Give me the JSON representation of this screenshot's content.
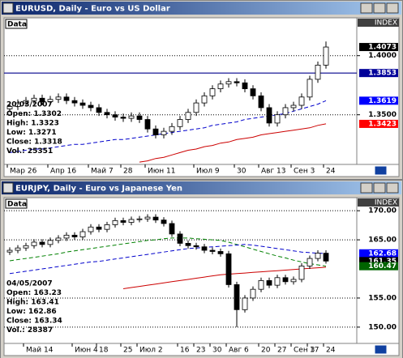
{
  "chart_data": [
    {
      "type": "candlestick",
      "title": "EURUSD, Daily - Euro vs US Dollar",
      "panel_label": "Data",
      "axis_label": "INDEX",
      "categories": [
        "Мар 26",
        null,
        null,
        null,
        null,
        "Апр 16",
        null,
        null,
        null,
        null,
        "Май 7",
        null,
        null,
        null,
        "28",
        null,
        null,
        "Июн 11",
        null,
        null,
        null,
        null,
        null,
        "Июл 9",
        null,
        null,
        null,
        null,
        "30",
        null,
        null,
        "Авг 13",
        null,
        null,
        null,
        "Сен 3",
        null,
        null,
        null,
        "24"
      ],
      "open": [
        1.355,
        1.357,
        1.36,
        1.362,
        1.364,
        1.361,
        1.363,
        1.365,
        1.362,
        1.36,
        1.358,
        1.356,
        1.352,
        1.35,
        1.348,
        1.347,
        1.349,
        1.346,
        1.338,
        1.333,
        1.336,
        1.34,
        1.346,
        1.352,
        1.36,
        1.366,
        1.372,
        1.376,
        1.378,
        1.377,
        1.372,
        1.366,
        1.356,
        1.343,
        1.35,
        1.356,
        1.358,
        1.365,
        1.38,
        1.392
      ],
      "high": [
        1.36,
        1.363,
        1.365,
        1.367,
        1.367,
        1.366,
        1.368,
        1.368,
        1.365,
        1.363,
        1.361,
        1.359,
        1.355,
        1.353,
        1.351,
        1.352,
        1.352,
        1.349,
        1.341,
        1.339,
        1.343,
        1.349,
        1.355,
        1.363,
        1.369,
        1.375,
        1.379,
        1.381,
        1.381,
        1.38,
        1.375,
        1.369,
        1.359,
        1.353,
        1.359,
        1.361,
        1.368,
        1.383,
        1.395,
        1.412
      ],
      "low": [
        1.352,
        1.354,
        1.357,
        1.359,
        1.358,
        1.358,
        1.36,
        1.359,
        1.357,
        1.355,
        1.353,
        1.349,
        1.347,
        1.345,
        1.344,
        1.344,
        1.343,
        1.335,
        1.33,
        1.33,
        1.333,
        1.337,
        1.343,
        1.349,
        1.357,
        1.363,
        1.369,
        1.373,
        1.374,
        1.369,
        1.363,
        1.353,
        1.34,
        1.34,
        1.347,
        1.353,
        1.355,
        1.362,
        1.377,
        1.389
      ],
      "close": [
        1.357,
        1.36,
        1.362,
        1.364,
        1.361,
        1.363,
        1.365,
        1.362,
        1.36,
        1.358,
        1.356,
        1.352,
        1.35,
        1.348,
        1.347,
        1.349,
        1.346,
        1.338,
        1.333,
        1.336,
        1.34,
        1.346,
        1.352,
        1.36,
        1.366,
        1.372,
        1.376,
        1.378,
        1.377,
        1.372,
        1.366,
        1.356,
        1.343,
        1.35,
        1.356,
        1.358,
        1.365,
        1.38,
        1.392,
        1.4073
      ],
      "up_color": "#ffffff",
      "down_color": "#000000",
      "series": [
        {
          "color": "#0000cc",
          "dash": true,
          "values": [
            1.318,
            1.319,
            1.32,
            1.321,
            1.321,
            1.322,
            1.323,
            1.324,
            1.325,
            1.325,
            1.326,
            1.327,
            1.328,
            1.329,
            1.329,
            1.33,
            1.331,
            1.332,
            1.333,
            1.334,
            1.335,
            1.336,
            1.337,
            1.338,
            1.339,
            1.341,
            1.342,
            1.343,
            1.344,
            1.346,
            1.347,
            1.348,
            1.349,
            1.35,
            1.351,
            1.353,
            1.355,
            1.357,
            1.359,
            1.3619
          ]
        },
        {
          "color": "#cc0000",
          "dash": false,
          "values": [
            null,
            null,
            null,
            null,
            null,
            null,
            null,
            null,
            null,
            null,
            null,
            null,
            null,
            null,
            null,
            null,
            1.31,
            1.311,
            1.313,
            1.314,
            1.316,
            1.318,
            1.32,
            1.321,
            1.323,
            1.324,
            1.326,
            1.327,
            1.329,
            1.33,
            1.331,
            1.333,
            1.334,
            1.335,
            1.336,
            1.337,
            1.338,
            1.339,
            1.341,
            1.3423
          ]
        }
      ],
      "hlines": [
        {
          "value": 1.3853,
          "color": "#00008b"
        }
      ],
      "markers": [
        {
          "value": 1.4073,
          "color": "#000000"
        },
        {
          "value": 1.3853,
          "color": "#000099"
        },
        {
          "value": 1.3619,
          "color": "#0000ff"
        },
        {
          "value": 1.3423,
          "color": "#ff0000"
        }
      ],
      "ylim": [
        1.308,
        1.432
      ],
      "yticks": [
        {
          "value": 1.4,
          "label": "1.4000"
        },
        {
          "value": 1.35,
          "label": "1.3500"
        }
      ],
      "grid": true,
      "info": [
        "20/03/2007",
        "Open: 1.3302",
        "High: 1.3323",
        "Low: 1.3271",
        "Close: 1.3318",
        "Vol.: 25351"
      ]
    },
    {
      "type": "candlestick",
      "title": "EURJPY, Daily - Euro vs Japanese Yen",
      "panel_label": "Data",
      "axis_label": "INDEX",
      "categories": [
        null,
        null,
        "Май 14",
        null,
        null,
        null,
        null,
        null,
        "Июн 4",
        null,
        null,
        "18",
        null,
        null,
        "25",
        null,
        "Июл 2",
        null,
        null,
        null,
        null,
        "16",
        null,
        "23",
        null,
        "30",
        null,
        "Авг 6",
        null,
        null,
        null,
        "20",
        null,
        "27",
        null,
        "Сен 3",
        null,
        "17",
        null,
        "24"
      ],
      "open": [
        162.9,
        163.2,
        163.6,
        164.0,
        164.6,
        164.2,
        164.9,
        165.3,
        165.8,
        165.5,
        166.4,
        167.2,
        166.8,
        167.6,
        168.3,
        168.0,
        168.5,
        168.6,
        168.9,
        168.4,
        167.8,
        166.0,
        164.4,
        164.0,
        163.8,
        163.2,
        163.0,
        162.6,
        157.3,
        153.0,
        155.0,
        156.5,
        158.0,
        157.2,
        158.5,
        157.8,
        158.2,
        160.5,
        161.8,
        162.7
      ],
      "high": [
        163.7,
        164.1,
        164.5,
        165.1,
        165.1,
        165.4,
        165.8,
        166.3,
        166.3,
        166.9,
        167.7,
        167.7,
        168.1,
        168.8,
        168.8,
        169.0,
        169.1,
        169.4,
        169.4,
        168.9,
        168.3,
        166.5,
        164.9,
        164.5,
        164.3,
        163.7,
        163.5,
        163.1,
        157.8,
        155.5,
        157.0,
        158.5,
        158.5,
        159.0,
        159.0,
        158.7,
        161.0,
        162.3,
        163.2,
        163.2
      ],
      "low": [
        162.4,
        162.7,
        163.1,
        163.5,
        163.7,
        163.7,
        164.4,
        164.8,
        165.0,
        165.0,
        165.9,
        166.3,
        166.3,
        167.1,
        167.5,
        167.5,
        168.0,
        168.1,
        167.9,
        167.3,
        165.5,
        163.9,
        163.5,
        163.3,
        162.7,
        162.5,
        162.1,
        156.8,
        150.0,
        152.5,
        154.5,
        156.0,
        156.7,
        156.7,
        157.3,
        157.3,
        157.7,
        160.0,
        161.3,
        160.9
      ],
      "close": [
        163.2,
        163.6,
        164.0,
        164.6,
        164.2,
        164.9,
        165.3,
        165.8,
        165.5,
        166.4,
        167.2,
        166.8,
        167.6,
        168.3,
        168.0,
        168.5,
        168.6,
        168.9,
        168.4,
        167.8,
        166.0,
        164.4,
        164.0,
        163.8,
        163.2,
        163.0,
        162.6,
        157.3,
        153.0,
        155.0,
        156.5,
        158.0,
        157.2,
        158.5,
        157.8,
        158.2,
        160.5,
        161.8,
        162.7,
        161.35
      ],
      "up_color": "#ffffff",
      "down_color": "#000000",
      "series": [
        {
          "color": "#008000",
          "dash": true,
          "values": [
            161.4,
            161.6,
            161.8,
            162.0,
            162.2,
            162.4,
            162.6,
            162.9,
            163.1,
            163.3,
            163.5,
            163.7,
            163.9,
            164.1,
            164.3,
            164.5,
            164.7,
            164.9,
            165.0,
            165.2,
            165.3,
            165.3,
            165.3,
            165.2,
            165.1,
            165.0,
            164.9,
            164.6,
            164.2,
            163.8,
            163.4,
            163.0,
            162.6,
            162.2,
            161.9,
            161.5,
            161.2,
            160.9,
            160.7,
            160.47
          ]
        },
        {
          "color": "#0000cc",
          "dash": true,
          "values": [
            159.2,
            159.4,
            159.6,
            159.8,
            160.0,
            160.2,
            160.4,
            160.6,
            160.8,
            161.0,
            161.2,
            161.3,
            161.5,
            161.7,
            161.9,
            162.1,
            162.3,
            162.5,
            162.7,
            162.9,
            163.1,
            163.3,
            163.5,
            163.6,
            163.7,
            163.8,
            163.9,
            164.0,
            164.1,
            164.2,
            164.1,
            163.9,
            163.7,
            163.5,
            163.3,
            163.1,
            162.9,
            162.8,
            162.7,
            162.68
          ]
        },
        {
          "color": "#cc0000",
          "dash": false,
          "values": [
            null,
            null,
            null,
            null,
            null,
            null,
            null,
            null,
            null,
            null,
            null,
            null,
            null,
            null,
            156.6,
            156.8,
            157.0,
            157.2,
            157.4,
            157.6,
            157.8,
            158.0,
            158.2,
            158.4,
            158.6,
            158.8,
            159.0,
            159.1,
            159.2,
            159.3,
            159.4,
            159.5,
            159.6,
            159.7,
            159.8,
            159.9,
            160.0,
            160.1,
            160.2,
            160.3
          ]
        }
      ],
      "hlines": [],
      "markers": [
        {
          "value": 162.68,
          "color": "#0000ff"
        },
        {
          "value": 161.35,
          "color": "#000000"
        },
        {
          "value": 160.47,
          "color": "#006400"
        }
      ],
      "ylim": [
        147.2,
        172.25
      ],
      "yticks": [
        {
          "value": 170,
          "label": "170.00"
        },
        {
          "value": 165,
          "label": "165.00"
        },
        {
          "value": 155,
          "label": "155.00"
        },
        {
          "value": 150,
          "label": "150.00"
        }
      ],
      "grid": true,
      "info": [
        "04/05/2007",
        "Open: 163.23",
        "High: 163.41",
        "Low: 162.86",
        "Close: 163.34",
        "Vol.: 28387"
      ]
    }
  ]
}
